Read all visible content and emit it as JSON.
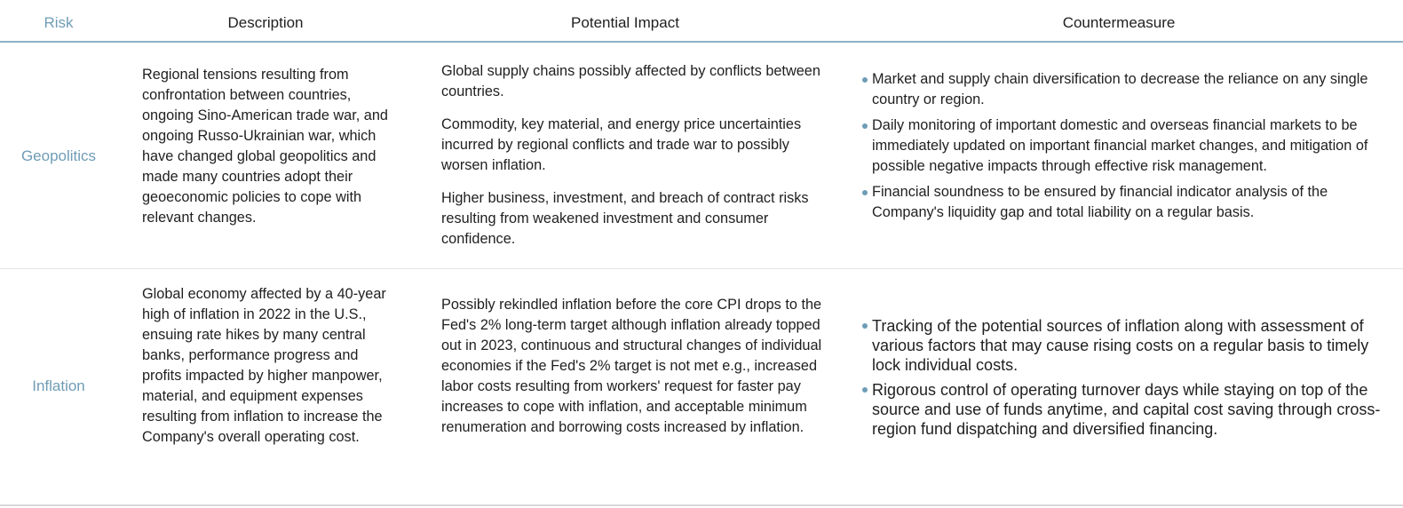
{
  "header": {
    "risk": "Risk",
    "description": "Description",
    "impact": "Potential Impact",
    "countermeasure": "Countermeasure"
  },
  "rows": [
    {
      "risk": "Geopolitics",
      "description": "Regional tensions resulting from confrontation between countries, ongoing Sino-American trade war, and ongoing Russo-Ukrainian war, which have changed global geopolitics and made many countries adopt their geoeconomic policies to cope with relevant changes.",
      "impacts": [
        "Global supply chains possibly affected by conflicts between countries.",
        "Commodity, key material, and energy price uncertainties incurred by regional conflicts and trade war to possibly worsen inflation.",
        "Higher business, investment, and breach of contract risks resulting from weakened investment and consumer confidence."
      ],
      "countermeasures": [
        "Market and supply chain diversification to decrease the reliance on any single country or region.",
        "Daily monitoring of important domestic and overseas financial markets to be immediately updated on important financial market changes, and mitigation of possible negative impacts through effective risk management.",
        "Financial soundness to be ensured by financial indicator analysis of the Company's liquidity gap and total liability on a regular basis."
      ]
    },
    {
      "risk": "Inflation",
      "description": "Global economy affected by a 40-year high of inflation in 2022 in the U.S., ensuing rate hikes by many central banks, performance progress and profits impacted by higher manpower, material, and equipment expenses resulting from inflation to increase the Company's overall operating cost.",
      "impacts": [
        "Possibly rekindled inflation before the core CPI drops to the Fed's 2% long-term target although inflation already topped out in 2023, continuous and structural changes of individual economies if the Fed's 2% target is not met e.g., increased labor costs resulting from workers' request for faster pay increases to cope with inflation, and acceptable minimum renumeration and borrowing costs increased by inflation."
      ],
      "countermeasures": [
        "Tracking of the potential sources of inflation along with assessment of various factors that may cause rising costs on a regular basis to timely lock individual costs.",
        "Rigorous control of operating turnover days while staying on top of the source and use of funds anytime, and capital cost saving through cross-region fund dispatching and diversified financing."
      ]
    }
  ],
  "colors": {
    "accent": "#6f9cb6",
    "header_rule": "#8fb2c7",
    "text": "#1f1f1f",
    "row_divider": "#e4e4e4"
  }
}
